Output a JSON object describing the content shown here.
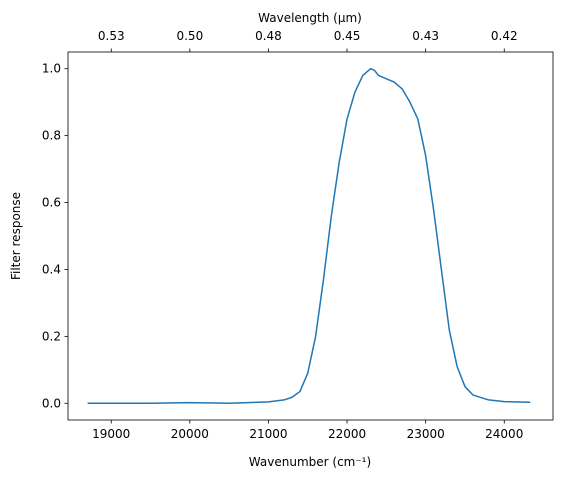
{
  "chart_data": {
    "type": "line",
    "xlabel": "Wavenumber (cm⁻¹)",
    "ylabel": "Filter response",
    "x2label": "Wavelength (μm)",
    "x": [
      18700,
      19000,
      19500,
      20000,
      20500,
      21000,
      21200,
      21300,
      21400,
      21500,
      21600,
      21700,
      21800,
      21900,
      22000,
      22100,
      22200,
      22300,
      22350,
      22400,
      22500,
      22600,
      22700,
      22800,
      22900,
      23000,
      23100,
      23200,
      23300,
      23400,
      23500,
      23600,
      23800,
      24000,
      24330
    ],
    "series": [
      {
        "name": "Filter response",
        "color": "#1f77b4",
        "values": [
          0.0,
          0.0,
          0.0,
          0.002,
          0.0,
          0.004,
          0.01,
          0.018,
          0.035,
          0.09,
          0.2,
          0.37,
          0.56,
          0.72,
          0.85,
          0.93,
          0.98,
          1.0,
          0.995,
          0.98,
          0.97,
          0.96,
          0.94,
          0.9,
          0.85,
          0.74,
          0.58,
          0.4,
          0.22,
          0.11,
          0.05,
          0.025,
          0.01,
          0.005,
          0.003
        ]
      }
    ],
    "xlim": [
      18450,
      24620
    ],
    "xticks": [
      19000,
      20000,
      21000,
      22000,
      23000,
      24000
    ],
    "ylim": [
      -0.05,
      1.05
    ],
    "yticks": [
      {
        "value": 0,
        "label": "0.0"
      },
      0.2,
      0.4,
      0.6,
      0.8,
      {
        "value": 1,
        "label": "1.0"
      }
    ],
    "x2scale": "reciprocal",
    "x2lim": [
      0.54201,
      0.40617
    ],
    "x2ticks": [
      {
        "value": 0.526316,
        "label": "0.53"
      },
      {
        "value": 0.5,
        "label": "0.50"
      },
      {
        "value": 0.47619,
        "label": "0.48"
      },
      {
        "value": 0.454545,
        "label": "0.45"
      },
      {
        "value": 0.434783,
        "label": "0.43"
      },
      {
        "value": 0.416667,
        "label": "0.42"
      }
    ],
    "grid": false
  }
}
